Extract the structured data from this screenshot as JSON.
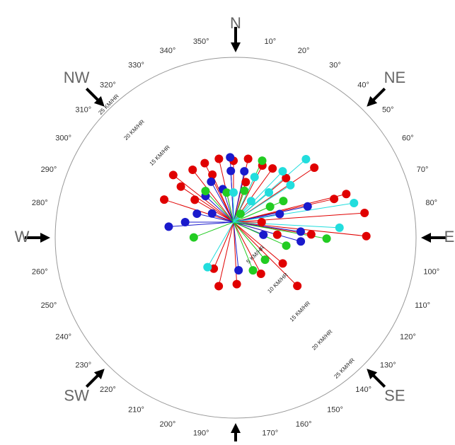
{
  "chart_data": {
    "type": "polar-scatter",
    "rlim": [
      0,
      25
    ],
    "rticks": [
      {
        "value": 5,
        "label": "5 KM/HR"
      },
      {
        "value": 10,
        "label": "10 KM/HR"
      },
      {
        "value": 15,
        "label": "15 KM/HR"
      },
      {
        "value": 20,
        "label": "20 KM/HR"
      },
      {
        "value": 25,
        "label": "25 KM/HR"
      }
    ],
    "thetaticks": [
      {
        "value": 10,
        "label": "10°"
      },
      {
        "value": 20,
        "label": "20°"
      },
      {
        "value": 30,
        "label": "30°"
      },
      {
        "value": 40,
        "label": "40°"
      },
      {
        "value": 50,
        "label": "50°"
      },
      {
        "value": 60,
        "label": "60°"
      },
      {
        "value": 70,
        "label": "70°"
      },
      {
        "value": 80,
        "label": "80°"
      },
      {
        "value": 100,
        "label": "100°"
      },
      {
        "value": 110,
        "label": "110°"
      },
      {
        "value": 120,
        "label": "120°"
      },
      {
        "value": 130,
        "label": "130°"
      },
      {
        "value": 140,
        "label": "140°"
      },
      {
        "value": 150,
        "label": "150°"
      },
      {
        "value": 160,
        "label": "160°"
      },
      {
        "value": 170,
        "label": "170°"
      },
      {
        "value": 190,
        "label": "190°"
      },
      {
        "value": 200,
        "label": "200°"
      },
      {
        "value": 210,
        "label": "210°"
      },
      {
        "value": 220,
        "label": "220°"
      },
      {
        "value": 230,
        "label": "230°"
      },
      {
        "value": 240,
        "label": "240°"
      },
      {
        "value": 250,
        "label": "250°"
      },
      {
        "value": 260,
        "label": "260°"
      },
      {
        "value": 280,
        "label": "280°"
      },
      {
        "value": 290,
        "label": "290°"
      },
      {
        "value": 300,
        "label": "300°"
      },
      {
        "value": 310,
        "label": "310°"
      },
      {
        "value": 320,
        "label": "320°"
      },
      {
        "value": 330,
        "label": "330°"
      },
      {
        "value": 340,
        "label": "340°"
      },
      {
        "value": 350,
        "label": "350°"
      }
    ],
    "compass": [
      "N",
      "NE",
      "E",
      "SE",
      "SW",
      "W",
      "NW"
    ],
    "series": [
      {
        "color": "#e00000",
        "theta": [
          288,
          308,
          322,
          334,
          347,
          0,
          13,
          27,
          36,
          50,
          56,
          76,
          77,
          86,
          96,
          99,
          135,
          203,
          193,
          177,
          152,
          130,
          106,
          90,
          304,
          300,
          336,
          17
        ],
        "values": [
          10.1,
          10.6,
          9.2,
          9.1,
          9.0,
          8.5,
          9.0,
          8.8,
          9.2,
          9.5,
          13.5,
          16.1,
          14.3,
          18.2,
          18.5,
          10.9,
          12.5,
          7.0,
          9.1,
          8.6,
          8.1,
          8.9,
          6.3,
          3.9,
          8.8,
          6.2,
          7.2,
          5.8
        ]
      },
      {
        "color": "#1a1acc",
        "theta": [
          266,
          270,
          283,
          292,
          357,
          357,
          12,
          342,
          313,
          331,
          78,
          98,
          106,
          113,
          174,
          80
        ],
        "values": [
          9.0,
          6.7,
          5.2,
          3.2,
          9.0,
          7.1,
          7.2,
          4.8,
          5.3,
          6.4,
          10.5,
          9.4,
          9.7,
          4.5,
          6.7,
          6.5
        ]
      },
      {
        "color": "#22cc22",
        "theta": [
          249,
          318,
          347,
          25,
          158,
          140,
          114,
          100,
          67,
          67,
          19,
          40
        ],
        "values": [
          5.9,
          5.8,
          4.2,
          9.4,
          7.2,
          6.8,
          8.0,
          13.1,
          7.5,
          5.5,
          4.6,
          1.5
        ]
      },
      {
        "color": "#22dddd",
        "theta": [
          49,
          81,
          93,
          210,
          44,
          57,
          0,
          25,
          50,
          40
        ],
        "values": [
          13.3,
          16.9,
          14.7,
          7.2,
          9.8,
          9.4,
          4.1,
          6.9,
          6.4,
          3.8
        ]
      }
    ]
  }
}
